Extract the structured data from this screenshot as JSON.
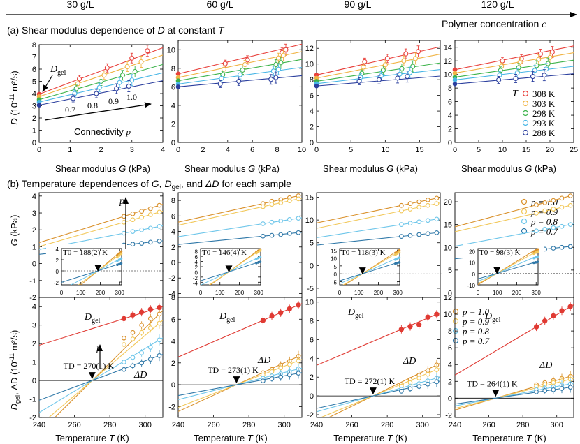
{
  "header": {
    "concentrations": [
      "30 g/L",
      "60 g/L",
      "90 g/L",
      "120 g/L"
    ],
    "arrow_label": "Polymer concentration",
    "arrow_symbol": "c"
  },
  "row_a": {
    "title_prefix": "(a) Shear modulus dependence of",
    "title_sym": "D",
    "title_suffix": "at constant",
    "title_sym2": "T",
    "xlabel": "Shear modulus",
    "xsym": "G",
    "xunit": "(kPa)",
    "ylabel_sym": "D",
    "ylabel_unit": "(10",
    "ylabel_exp": "-11",
    "ylabel_end": "m²/s)",
    "dgel_label": "D",
    "dgel_sub": "gel",
    "connectivity_label": "Connectivity",
    "connectivity_sym": "p",
    "p_values": [
      "0.7",
      "0.8",
      "0.9",
      "1.0"
    ],
    "legend_T": "T",
    "legend": [
      "308 K",
      "303 K",
      "298 K",
      "293 K",
      "288 K"
    ]
  },
  "row_b": {
    "title": "(b)  Temperature dependences of",
    "title_parts": [
      "G",
      ", ",
      "D",
      "gel",
      ", and ",
      "ΔD",
      " for each sample"
    ],
    "xlabel": "Temperature",
    "xsym": "T",
    "xunit": "(K)",
    "g_ylabel": "(kPa)",
    "g_ysym": "G",
    "d_ylabel_sym": "D",
    "d_ylabel_sub": "gel",
    "d_ylabel_mid": ", ΔD",
    "d_ylabel_unit": "(10",
    "d_ylabel_exp": "-11",
    "d_ylabel_end": "m²/s)",
    "p_arrow": "p",
    "delta_label": "ΔD",
    "legend": [
      "p = 1.0",
      "p = 0.9",
      "p = 0.8",
      "p = 0.7"
    ],
    "T0_labels": [
      "T0 = 188(2) K",
      "T0 = 146(4) K",
      "T0 = 118(3) K",
      "T0 = 98(3) K"
    ],
    "TD_labels": [
      "TD = 270(1) K",
      "TD = 273(1) K",
      "TD = 272(1) K",
      "TD = 264(1) K"
    ]
  },
  "colors": {
    "T308": "#e8413c",
    "T303": "#f0b445",
    "T298": "#3cb34a",
    "T293": "#48b6e6",
    "T288": "#2b3f9e",
    "p10": "#d9902a",
    "p09": "#f2c85a",
    "p08": "#6ec6ea",
    "p07": "#2f78a8",
    "dgel": "#e03a33"
  },
  "chart_data": [
    {
      "type": "scatter",
      "title": "Shear modulus dependence of D at constant T, 30 g/L",
      "xlabel": "Shear modulus G (kPa)",
      "ylabel": "D (10^-11 m2/s)",
      "xlim": [
        0,
        4
      ],
      "ylim": [
        0,
        8
      ],
      "xticks": [
        0,
        1,
        2,
        3,
        4
      ],
      "yticks": [
        0,
        1,
        2,
        3,
        4,
        5,
        6,
        7,
        8
      ],
      "series": [
        {
          "name": "308 K",
          "intercept": 3.95,
          "slope": 0.95,
          "x": [
            1.3,
            2.2,
            3.0,
            3.5
          ],
          "y": [
            5.2,
            6.1,
            6.9,
            7.5
          ]
        },
        {
          "name": "303 K",
          "intercept": 3.75,
          "slope": 0.85,
          "x": [
            1.25,
            2.1,
            2.85,
            3.3
          ],
          "y": [
            4.8,
            5.5,
            6.2,
            6.6
          ]
        },
        {
          "name": "298 K",
          "intercept": 3.5,
          "slope": 0.72,
          "x": [
            1.2,
            2.0,
            2.7,
            3.1
          ],
          "y": [
            4.4,
            5.0,
            5.5,
            5.8
          ]
        },
        {
          "name": "293 K",
          "intercept": 3.3,
          "slope": 0.6,
          "x": [
            1.15,
            1.95,
            2.6,
            3.0
          ],
          "y": [
            4.0,
            4.5,
            4.9,
            5.1
          ]
        },
        {
          "name": "288 K",
          "intercept": 3.05,
          "slope": 0.5,
          "x": [
            1.1,
            1.85,
            2.5,
            2.9
          ],
          "y": [
            3.6,
            4.0,
            4.4,
            4.6
          ]
        }
      ]
    },
    {
      "type": "scatter",
      "title": "Shear modulus dependence of D at constant T, 60 g/L",
      "xlabel": "Shear modulus G (kPa)",
      "ylabel": "D (10^-11 m2/s)",
      "xlim": [
        0,
        10
      ],
      "ylim": [
        0,
        11
      ],
      "xticks": [
        0,
        2,
        4,
        6,
        8,
        10
      ],
      "yticks": [
        0,
        2,
        4,
        6,
        8,
        10
      ],
      "series": [
        {
          "name": "308 K",
          "intercept": 7.4,
          "slope": 0.32,
          "x": [
            3.8,
            5.6,
            8.4,
            8.7
          ],
          "y": [
            8.5,
            8.9,
            9.7,
            10.0
          ]
        },
        {
          "name": "303 K",
          "intercept": 7.0,
          "slope": 0.28,
          "x": [
            3.7,
            5.4,
            8.1,
            8.5
          ],
          "y": [
            7.9,
            8.4,
            9.1,
            9.4
          ]
        },
        {
          "name": "298 K",
          "intercept": 6.65,
          "slope": 0.23,
          "x": [
            3.6,
            5.2,
            7.9,
            8.3
          ],
          "y": [
            7.3,
            7.8,
            8.4,
            8.6
          ]
        },
        {
          "name": "293 K",
          "intercept": 6.3,
          "slope": 0.18,
          "x": [
            3.5,
            5.0,
            7.7,
            8.1
          ],
          "y": [
            6.9,
            7.3,
            7.7,
            7.9
          ]
        },
        {
          "name": "288 K",
          "intercept": 6.0,
          "slope": 0.12,
          "x": [
            3.4,
            4.9,
            7.5,
            7.9
          ],
          "y": [
            6.3,
            6.6,
            6.8,
            7.0
          ]
        }
      ]
    },
    {
      "type": "scatter",
      "title": "Shear modulus dependence of D at constant T, 90 g/L",
      "xlabel": "Shear modulus G (kPa)",
      "ylabel": "D (10^-11 m2/s)",
      "xlim": [
        0,
        18
      ],
      "ylim": [
        0,
        13
      ],
      "xticks": [
        0,
        5,
        10,
        15
      ],
      "yticks": [
        0,
        2,
        4,
        6,
        8,
        10,
        12
      ],
      "series": [
        {
          "name": "308 K",
          "intercept": 8.6,
          "slope": 0.2,
          "x": [
            7.0,
            10.3,
            13.0,
            14.8
          ],
          "y": [
            10.3,
            10.7,
            11.3,
            11.6
          ]
        },
        {
          "name": "303 K",
          "intercept": 8.2,
          "slope": 0.17,
          "x": [
            6.8,
            10.0,
            12.7,
            14.4
          ],
          "y": [
            9.6,
            9.9,
            10.4,
            10.7
          ]
        },
        {
          "name": "298 K",
          "intercept": 7.8,
          "slope": 0.13,
          "x": [
            6.6,
            9.7,
            12.4,
            14.0
          ],
          "y": [
            8.8,
            9.2,
            9.4,
            9.7
          ]
        },
        {
          "name": "293 K",
          "intercept": 7.5,
          "slope": 0.1,
          "x": [
            6.4,
            9.4,
            12.1,
            13.6
          ],
          "y": [
            8.3,
            8.5,
            8.7,
            8.9
          ]
        },
        {
          "name": "288 K",
          "intercept": 7.2,
          "slope": 0.07,
          "x": [
            6.2,
            9.1,
            11.8,
            13.2
          ],
          "y": [
            7.8,
            8.0,
            8.2,
            8.4
          ]
        }
      ]
    },
    {
      "type": "scatter",
      "title": "Shear modulus dependence of D at constant T, 120 g/L",
      "xlabel": "Shear modulus G (kPa)",
      "ylabel": "D (10^-11 m2/s)",
      "xlim": [
        0,
        25
      ],
      "ylim": [
        0,
        15
      ],
      "xticks": [
        0,
        5,
        10,
        15,
        20,
        25
      ],
      "yticks": [
        0,
        2,
        4,
        6,
        8,
        10,
        12,
        14
      ],
      "series": [
        {
          "name": "308 K",
          "intercept": 10.7,
          "slope": 0.14,
          "x": [
            10.0,
            14.0,
            18.0,
            20.5
          ],
          "y": [
            12.0,
            12.3,
            13.0,
            13.3
          ]
        },
        {
          "name": "303 K",
          "intercept": 10.2,
          "slope": 0.12,
          "x": [
            9.8,
            13.7,
            17.6,
            20.0
          ],
          "y": [
            11.2,
            11.8,
            12.2,
            12.5
          ]
        },
        {
          "name": "298 K",
          "intercept": 9.6,
          "slope": 0.1,
          "x": [
            9.6,
            13.4,
            17.2,
            19.6
          ],
          "y": [
            10.6,
            11.0,
            11.3,
            11.6
          ]
        },
        {
          "name": "293 K",
          "intercept": 9.2,
          "slope": 0.08,
          "x": [
            9.4,
            13.1,
            16.8,
            19.2
          ],
          "y": [
            9.9,
            10.2,
            10.6,
            10.8
          ]
        },
        {
          "name": "288 K",
          "intercept": 8.6,
          "slope": 0.06,
          "x": [
            9.2,
            12.8,
            16.4,
            18.8
          ],
          "y": [
            9.2,
            9.4,
            9.7,
            9.9
          ]
        }
      ]
    },
    {
      "type": "line",
      "title": "G vs T, 30 g/L",
      "xlabel": "Temperature T (K)",
      "ylabel": "G (kPa)",
      "xlim": [
        240,
        310
      ],
      "ylim": [
        -2,
        4.2
      ],
      "yticks": [
        -2,
        -1,
        0,
        1,
        2,
        3,
        4
      ],
      "T0": 188,
      "x": [
        288,
        293,
        298,
        303,
        308
      ],
      "series": [
        {
          "name": "p = 1.0",
          "values": [
            2.8,
            2.95,
            3.1,
            3.25,
            3.45
          ]
        },
        {
          "name": "p = 0.9",
          "values": [
            2.45,
            2.6,
            2.75,
            2.9,
            3.05
          ]
        },
        {
          "name": "p = 0.8",
          "values": [
            1.8,
            1.9,
            2.0,
            2.1,
            2.2
          ]
        },
        {
          "name": "p = 0.7",
          "values": [
            1.1,
            1.15,
            1.2,
            1.27,
            1.33
          ]
        }
      ]
    },
    {
      "type": "line",
      "title": "G vs T, 60 g/L",
      "xlabel": "Temperature T (K)",
      "ylabel": "G (kPa)",
      "xlim": [
        240,
        310
      ],
      "ylim": [
        -4.5,
        9
      ],
      "yticks": [
        -4,
        -2,
        0,
        2,
        4,
        6,
        8
      ],
      "T0": 146,
      "x": [
        288,
        293,
        298,
        303,
        308
      ],
      "series": [
        {
          "name": "p = 1.0",
          "values": [
            7.6,
            7.9,
            8.1,
            8.35,
            8.6
          ]
        },
        {
          "name": "p = 0.9",
          "values": [
            7.2,
            7.5,
            7.7,
            7.95,
            8.2
          ]
        },
        {
          "name": "p = 0.8",
          "values": [
            5.0,
            5.2,
            5.35,
            5.55,
            5.7
          ]
        },
        {
          "name": "p = 0.7",
          "values": [
            3.4,
            3.5,
            3.6,
            3.75,
            3.85
          ]
        }
      ]
    },
    {
      "type": "line",
      "title": "G vs T, 90 g/L",
      "xlabel": "Temperature T (K)",
      "ylabel": "G (kPa)",
      "xlim": [
        240,
        310
      ],
      "ylim": [
        -7,
        16
      ],
      "yticks": [
        -5,
        0,
        5,
        10,
        15
      ],
      "T0": 118,
      "x": [
        288,
        293,
        298,
        303,
        308
      ],
      "series": [
        {
          "name": "p = 1.0",
          "values": [
            13.2,
            13.6,
            14.0,
            14.4,
            14.8
          ]
        },
        {
          "name": "p = 0.9",
          "values": [
            12.0,
            12.4,
            12.8,
            13.2,
            13.6
          ]
        },
        {
          "name": "p = 0.8",
          "values": [
            9.0,
            9.3,
            9.6,
            9.9,
            10.2
          ]
        },
        {
          "name": "p = 0.7",
          "values": [
            6.4,
            6.6,
            6.8,
            7.0,
            7.2
          ]
        }
      ]
    },
    {
      "type": "line",
      "title": "G vs T, 120 g/L",
      "xlabel": "Temperature T (K)",
      "ylabel": "G (kPa)",
      "xlim": [
        240,
        310
      ],
      "ylim": [
        -1,
        22
      ],
      "yticks": [
        0,
        5,
        10,
        15,
        20
      ],
      "T0": 98,
      "x": [
        288,
        293,
        298,
        303,
        308
      ],
      "series": [
        {
          "name": "p = 1.0",
          "values": [
            19.3,
            19.8,
            20.3,
            20.8,
            21.3
          ]
        },
        {
          "name": "p = 0.9",
          "values": [
            17.5,
            18.0,
            18.4,
            18.8,
            19.2
          ]
        },
        {
          "name": "p = 0.8",
          "values": [
            13.6,
            14.0,
            14.3,
            14.6,
            15.0
          ]
        },
        {
          "name": "p = 0.7",
          "values": [
            9.4,
            9.6,
            9.8,
            10.0,
            10.2
          ]
        }
      ]
    },
    {
      "type": "line",
      "title": "Dgel and ΔD vs T, 30 g/L",
      "xlabel": "Temperature T (K)",
      "ylabel": "Dgel, ΔD (10^-11 m2/s)",
      "xlim": [
        240,
        310
      ],
      "ylim": [
        -2,
        4.5
      ],
      "yticks": [
        -2,
        -1,
        0,
        1,
        2,
        3,
        4
      ],
      "TD": 270,
      "x": [
        288,
        293,
        298,
        303,
        308
      ],
      "series": [
        {
          "name": "Dgel",
          "values": [
            3.35,
            3.55,
            3.7,
            3.85,
            3.95
          ]
        },
        {
          "name": "p = 1.0",
          "values": [
            2.3,
            2.6,
            3.0,
            3.35,
            3.6
          ]
        },
        {
          "name": "p = 0.9",
          "values": [
            1.95,
            2.25,
            2.6,
            2.85,
            3.1
          ]
        },
        {
          "name": "p = 0.8",
          "values": [
            1.0,
            1.25,
            1.5,
            1.8,
            2.2
          ]
        },
        {
          "name": "p = 0.7",
          "values": [
            0.6,
            0.8,
            0.95,
            1.15,
            1.35
          ]
        }
      ]
    },
    {
      "type": "line",
      "title": "Dgel and ΔD vs T, 60 g/L",
      "xlabel": "Temperature T (K)",
      "ylabel": "Dgel, ΔD (10^-11 m2/s)",
      "xlim": [
        240,
        310
      ],
      "ylim": [
        -3,
        8
      ],
      "yticks": [
        -2,
        0,
        2,
        4,
        6,
        8
      ],
      "TD": 273,
      "x": [
        288,
        293,
        298,
        303,
        308
      ],
      "series": [
        {
          "name": "Dgel",
          "values": [
            5.9,
            6.3,
            6.6,
            6.95,
            7.3
          ]
        },
        {
          "name": "p = 1.0",
          "values": [
            1.1,
            1.4,
            1.8,
            2.15,
            2.6
          ]
        },
        {
          "name": "p = 0.9",
          "values": [
            0.9,
            1.2,
            1.55,
            1.85,
            2.2
          ]
        },
        {
          "name": "p = 0.8",
          "values": [
            0.6,
            0.8,
            1.0,
            1.2,
            1.45
          ]
        },
        {
          "name": "p = 0.7",
          "values": [
            0.35,
            0.55,
            0.7,
            0.9,
            1.05
          ]
        }
      ]
    },
    {
      "type": "line",
      "title": "Dgel and ΔD vs T, 90 g/L",
      "xlabel": "Temperature T (K)",
      "ylabel": "Dgel, ΔD (10^-11 m2/s)",
      "xlim": [
        240,
        310
      ],
      "ylim": [
        -2.3,
        10.5
      ],
      "yticks": [
        -2,
        0,
        2,
        4,
        6,
        8,
        10
      ],
      "TD": 272,
      "x": [
        288,
        293,
        298,
        303,
        308
      ],
      "series": [
        {
          "name": "Dgel",
          "values": [
            7.1,
            7.4,
            7.6,
            8.4,
            8.7
          ]
        },
        {
          "name": "p = 1.0",
          "values": [
            1.2,
            1.7,
            2.2,
            2.7,
            3.3
          ]
        },
        {
          "name": "p = 0.9",
          "values": [
            1.0,
            1.4,
            1.9,
            2.3,
            2.8
          ]
        },
        {
          "name": "p = 0.8",
          "values": [
            0.7,
            1.0,
            1.3,
            1.6,
            1.9
          ]
        },
        {
          "name": "p = 0.7",
          "values": [
            0.5,
            0.75,
            1.0,
            1.25,
            1.5
          ]
        }
      ]
    },
    {
      "type": "line",
      "title": "Dgel and ΔD vs T, 120 g/L",
      "xlabel": "Temperature T (K)",
      "ylabel": "Dgel, ΔD (10^-11 m2/s)",
      "xlim": [
        240,
        310
      ],
      "ylim": [
        -2.3,
        12
      ],
      "yticks": [
        -2,
        0,
        2,
        4,
        6,
        8,
        10,
        12
      ],
      "TD": 264,
      "x": [
        288,
        293,
        298,
        303,
        308
      ],
      "series": [
        {
          "name": "Dgel",
          "values": [
            8.5,
            9.2,
            9.8,
            10.4,
            10.9
          ]
        },
        {
          "name": "p = 1.0",
          "values": [
            1.6,
            1.85,
            2.1,
            2.35,
            2.6
          ]
        },
        {
          "name": "p = 0.9",
          "values": [
            1.4,
            1.6,
            1.85,
            2.05,
            2.25
          ]
        },
        {
          "name": "p = 0.8",
          "values": [
            1.0,
            1.2,
            1.35,
            1.55,
            1.7
          ]
        },
        {
          "name": "p = 0.7",
          "values": [
            0.75,
            0.9,
            1.0,
            1.15,
            1.3
          ]
        }
      ]
    }
  ]
}
